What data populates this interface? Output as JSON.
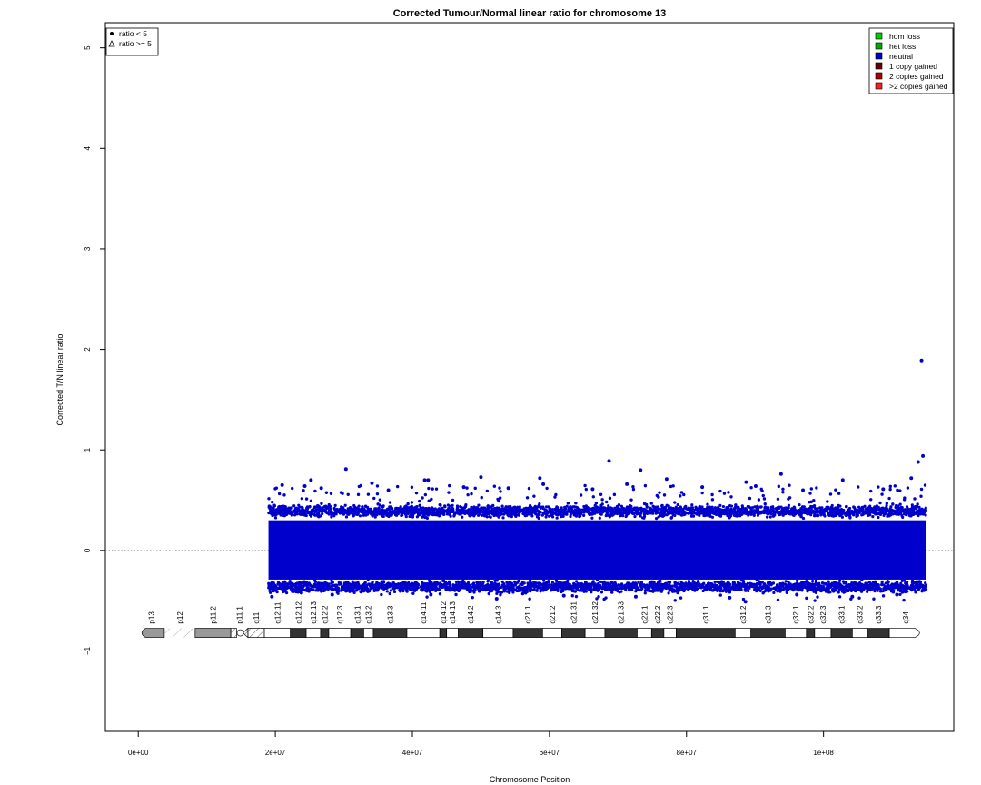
{
  "chart_data": {
    "type": "scatter",
    "title": "Corrected Tumour/Normal linear ratio for chromosome  13",
    "xlabel": "Chromosome Position",
    "ylabel": "Corrected T/N linear ratio",
    "xlim": [
      -4800000,
      119000000
    ],
    "ylim": [
      -1.8,
      5.25
    ],
    "x_ticks": [
      0,
      20000000,
      40000000,
      60000000,
      80000000,
      100000000
    ],
    "x_tick_labels": [
      "0e+00",
      "2e+07",
      "4e+07",
      "6e+07",
      "8e+07",
      "1e+08"
    ],
    "y_ticks": [
      -1,
      0,
      1,
      2,
      3,
      4,
      5
    ],
    "y_tick_labels": [
      "−1",
      "0",
      "1",
      "2",
      "3",
      "4",
      "5"
    ],
    "reference_line": {
      "y": 0,
      "style": "dotted",
      "color": "#777777"
    },
    "data_extent": {
      "x_start": 19000000,
      "x_end": 115000000
    },
    "data_color": "#0000cc",
    "bulk_band": {
      "y_min": -0.35,
      "y_max": 0.38,
      "density": "very high"
    },
    "outliers": [
      {
        "x": 114300000,
        "y": 1.89
      },
      {
        "x": 114500000,
        "y": 0.94
      },
      {
        "x": 113800000,
        "y": 0.88
      },
      {
        "x": 68700000,
        "y": 0.89
      },
      {
        "x": 30300000,
        "y": 0.81
      },
      {
        "x": 73300000,
        "y": 0.8
      },
      {
        "x": 93800000,
        "y": 0.76
      },
      {
        "x": 50000000,
        "y": 0.73
      },
      {
        "x": 58600000,
        "y": 0.72
      },
      {
        "x": 112800000,
        "y": 0.72
      },
      {
        "x": 25200000,
        "y": 0.7
      },
      {
        "x": 77100000,
        "y": 0.71
      },
      {
        "x": 41800000,
        "y": 0.7
      },
      {
        "x": 42300000,
        "y": 0.7
      },
      {
        "x": 102800000,
        "y": 0.7
      },
      {
        "x": 34100000,
        "y": 0.67
      },
      {
        "x": 88700000,
        "y": 0.68
      },
      {
        "x": 24300000,
        "y": 0.64
      },
      {
        "x": 59100000,
        "y": 0.66
      },
      {
        "x": 71300000,
        "y": 0.66
      },
      {
        "x": 21000000,
        "y": 0.65
      },
      {
        "x": 54000000,
        "y": 0.62
      },
      {
        "x": 47500000,
        "y": 0.63
      },
      {
        "x": 82300000,
        "y": 0.63
      },
      {
        "x": 36500000,
        "y": 0.6
      },
      {
        "x": 90100000,
        "y": 0.64
      },
      {
        "x": 108700000,
        "y": 0.61
      },
      {
        "x": 66300000,
        "y": 0.61
      },
      {
        "x": 26700000,
        "y": 0.62
      },
      {
        "x": 97000000,
        "y": 0.6
      },
      {
        "x": 19500000,
        "y": -0.46
      },
      {
        "x": 23800000,
        "y": -0.42
      },
      {
        "x": 28300000,
        "y": -0.44
      },
      {
        "x": 32500000,
        "y": -0.41
      },
      {
        "x": 42700000,
        "y": -0.44
      },
      {
        "x": 52300000,
        "y": -0.48
      },
      {
        "x": 62100000,
        "y": -0.45
      },
      {
        "x": 72600000,
        "y": -0.46
      },
      {
        "x": 86300000,
        "y": -0.47
      },
      {
        "x": 88600000,
        "y": -0.51
      },
      {
        "x": 96100000,
        "y": -0.44
      },
      {
        "x": 104200000,
        "y": -0.46
      },
      {
        "x": 110700000,
        "y": -0.44
      }
    ],
    "legends": [
      {
        "position": "top-left",
        "entries": [
          {
            "symbol": "filled-circle",
            "label": "ratio < 5"
          },
          {
            "symbol": "open-triangle",
            "label": "ratio >= 5"
          }
        ]
      },
      {
        "position": "top-right",
        "entries": [
          {
            "color": "#00cc00",
            "label": "hom loss"
          },
          {
            "color": "#00aa00",
            "label": "het loss"
          },
          {
            "color": "#0000cc",
            "label": "neutral"
          },
          {
            "color": "#660000",
            "label": "1 copy gained"
          },
          {
            "color": "#aa0000",
            "label": "2 copies gained"
          },
          {
            "color": "#ee2222",
            "label": ">2 copies gained"
          }
        ]
      }
    ],
    "ideogram": {
      "y": -0.82,
      "bands": [
        {
          "name": "p13",
          "start": 0,
          "end": 3800000,
          "stain": "gpos50"
        },
        {
          "name": "p12",
          "start": 3800000,
          "end": 8300000,
          "stain": "stalk"
        },
        {
          "name": "p11.2",
          "start": 8300000,
          "end": 13500000,
          "stain": "gpos50"
        },
        {
          "name": "p11.1",
          "start": 13500000,
          "end": 16000000,
          "stain": "acen"
        },
        {
          "name": "q11",
          "start": 16000000,
          "end": 18400000,
          "stain": "gvar"
        },
        {
          "name": "q12.11",
          "start": 18400000,
          "end": 22200000,
          "stain": "gneg"
        },
        {
          "name": "q12.12",
          "start": 22200000,
          "end": 24500000,
          "stain": "gpos"
        },
        {
          "name": "q12.13",
          "start": 24500000,
          "end": 26600000,
          "stain": "gneg"
        },
        {
          "name": "q12.2",
          "start": 26600000,
          "end": 27800000,
          "stain": "gpos"
        },
        {
          "name": "q12.3",
          "start": 27800000,
          "end": 31000000,
          "stain": "gneg"
        },
        {
          "name": "q13.1",
          "start": 31000000,
          "end": 32900000,
          "stain": "gpos"
        },
        {
          "name": "q13.2",
          "start": 32900000,
          "end": 34300000,
          "stain": "gneg"
        },
        {
          "name": "q13.3",
          "start": 34300000,
          "end": 39200000,
          "stain": "gpos"
        },
        {
          "name": "q14.11",
          "start": 39200000,
          "end": 44000000,
          "stain": "gneg"
        },
        {
          "name": "q14.12",
          "start": 44000000,
          "end": 45000000,
          "stain": "gpos"
        },
        {
          "name": "q14.13",
          "start": 45000000,
          "end": 46700000,
          "stain": "gneg"
        },
        {
          "name": "q14.2",
          "start": 46700000,
          "end": 50300000,
          "stain": "gpos"
        },
        {
          "name": "q14.3",
          "start": 50300000,
          "end": 54700000,
          "stain": "gneg"
        },
        {
          "name": "q21.1",
          "start": 54700000,
          "end": 59000000,
          "stain": "gpos"
        },
        {
          "name": "q21.2",
          "start": 59000000,
          "end": 61800000,
          "stain": "gneg"
        },
        {
          "name": "q21.31",
          "start": 61800000,
          "end": 65200000,
          "stain": "gpos"
        },
        {
          "name": "q21.32",
          "start": 65200000,
          "end": 68100000,
          "stain": "gneg"
        },
        {
          "name": "q21.33",
          "start": 68100000,
          "end": 72800000,
          "stain": "gpos"
        },
        {
          "name": "q22.1",
          "start": 72800000,
          "end": 74900000,
          "stain": "gneg"
        },
        {
          "name": "q22.2",
          "start": 74900000,
          "end": 76700000,
          "stain": "gpos"
        },
        {
          "name": "q22.3",
          "start": 76700000,
          "end": 78500000,
          "stain": "gneg"
        },
        {
          "name": "q31.1",
          "start": 78500000,
          "end": 87100000,
          "stain": "gpos"
        },
        {
          "name": "q31.2",
          "start": 87100000,
          "end": 89400000,
          "stain": "gneg"
        },
        {
          "name": "q31.3",
          "start": 89400000,
          "end": 94400000,
          "stain": "gpos"
        },
        {
          "name": "q32.1",
          "start": 94400000,
          "end": 97500000,
          "stain": "gneg"
        },
        {
          "name": "q32.2",
          "start": 97500000,
          "end": 98700000,
          "stain": "gpos"
        },
        {
          "name": "q32.3",
          "start": 98700000,
          "end": 101100000,
          "stain": "gneg"
        },
        {
          "name": "q33.1",
          "start": 101100000,
          "end": 104200000,
          "stain": "gpos"
        },
        {
          "name": "q33.2",
          "start": 104200000,
          "end": 106400000,
          "stain": "gneg"
        },
        {
          "name": "q33.3",
          "start": 106400000,
          "end": 109600000,
          "stain": "gpos"
        },
        {
          "name": "q34",
          "start": 109600000,
          "end": 114400000,
          "stain": "gneg"
        }
      ]
    }
  }
}
